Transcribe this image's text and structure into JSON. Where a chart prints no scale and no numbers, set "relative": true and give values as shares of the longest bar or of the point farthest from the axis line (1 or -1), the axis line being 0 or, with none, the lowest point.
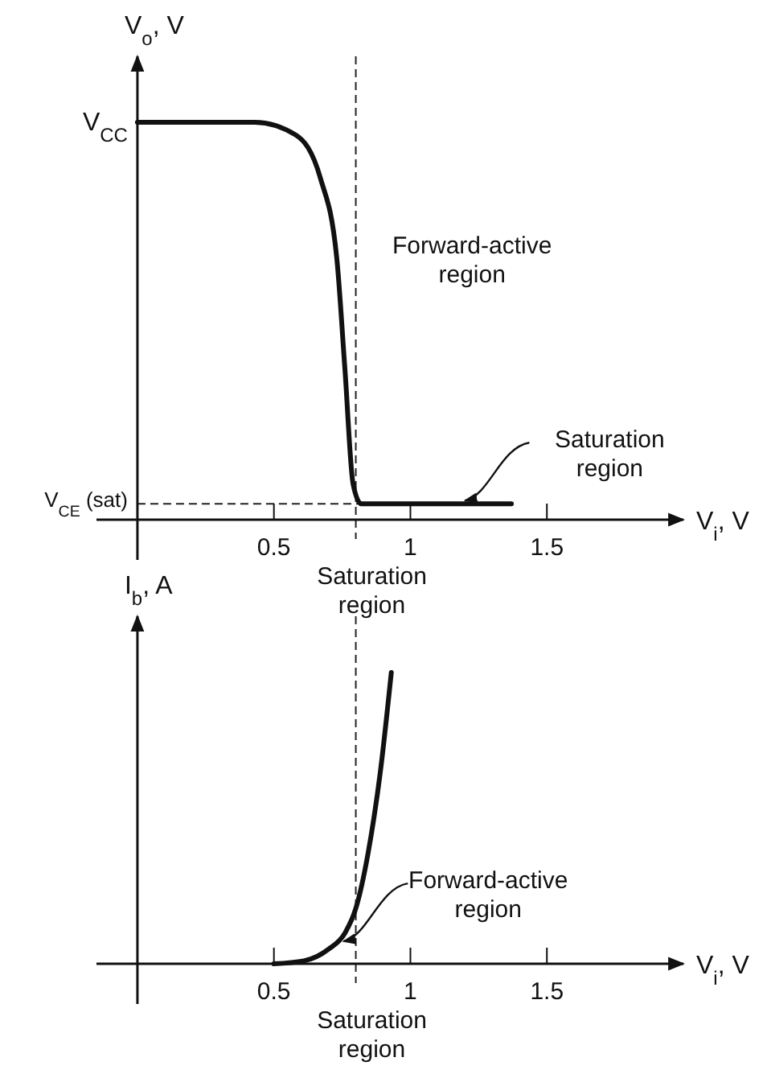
{
  "chart_data": [
    {
      "type": "line",
      "relative": true,
      "ylabel": "V$_{o}$, V",
      "xlabel": "V$_{i}$, V",
      "xlim": [
        -0.15,
        2.0
      ],
      "xticks": [
        0.5,
        1,
        1.5
      ],
      "tick_labels": "x",
      "grid": false,
      "legend": false,
      "marker": "none",
      "line_style": "solid",
      "x": [
        0,
        0.43,
        0.58,
        0.67,
        0.73,
        0.76,
        0.79,
        0.82,
        1.37
      ],
      "series": [
        {
          "color": "#111111",
          "values": [
            1,
            1,
            0.968,
            0.86,
            0.66,
            0.38,
            0.09,
            0.04,
            0.04
          ]
        }
      ],
      "ref_lines": [
        {
          "axis": "y",
          "value": 0.04,
          "label": "V$_{CE}$ (sat)",
          "line_style": "dashed"
        },
        {
          "axis": "x",
          "value": 0.8,
          "label": "Saturation region",
          "line_style": "dashed"
        }
      ],
      "annotations": [
        "V$_{CC}$",
        "Forward-active region",
        {
          "text": "Saturation region",
          "x": 1.2,
          "y": 0.04
        }
      ]
    },
    {
      "type": "line",
      "relative": true,
      "ylabel": "I$_{b}$, A",
      "xlabel": "V$_{i}$, V",
      "xlim": [
        -0.15,
        2.0
      ],
      "xticks": [
        0.5,
        1,
        1.5
      ],
      "tick_labels": "x",
      "grid": false,
      "legend": false,
      "marker": "none",
      "line_style": "solid",
      "x": [
        0.5,
        0.61,
        0.7,
        0.76,
        0.8,
        0.845,
        0.89,
        0.93
      ],
      "series": [
        {
          "color": "#111111",
          "values": [
            0,
            0.01,
            0.05,
            0.105,
            0.19,
            0.38,
            0.66,
            1
          ]
        }
      ],
      "ref_lines": [
        {
          "axis": "x",
          "value": 0.8,
          "label": "Saturation region",
          "line_style": "dashed"
        }
      ],
      "annotations": [
        {
          "text": "Forward-active region",
          "x": 0.755,
          "y": 0.066
        }
      ]
    }
  ]
}
